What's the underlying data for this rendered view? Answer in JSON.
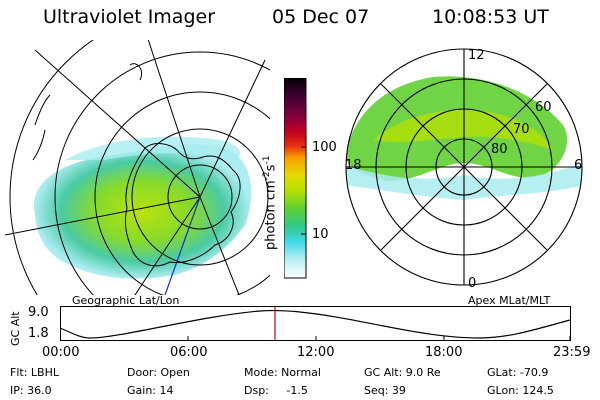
{
  "header": {
    "instrument": "Ultraviolet Imager",
    "date": "05 Dec 07",
    "time": "10:08:53 UT"
  },
  "left_panel": {
    "caption": "Geographic Lat/Lon"
  },
  "right_panel": {
    "caption": "Apex MLat/MLT",
    "mlt_labels": {
      "top": "12",
      "left": "18",
      "right": "6",
      "bottom": "0"
    },
    "mlat_labels": [
      "60",
      "70",
      "80"
    ]
  },
  "colorbar": {
    "unit_label": "photon cm",
    "unit_sup_1": "-2",
    "unit_mid": "s",
    "unit_sup_2": "-1",
    "tick_labels": [
      "100",
      "10"
    ],
    "colors": [
      "#000000",
      "#3a0030",
      "#7a0040",
      "#b00020",
      "#e0201a",
      "#f05010",
      "#f8a000",
      "#e8d800",
      "#b8e000",
      "#80d820",
      "#40c840",
      "#20c8a8",
      "#40d8e8",
      "#a8ecf0",
      "#ffffff"
    ]
  },
  "orbit_plot": {
    "ylabel": "GC Alt",
    "y_ticks": [
      "9.0",
      "1.8"
    ],
    "x_ticks": [
      "00:00",
      "06:00",
      "12:00",
      "18:00",
      "23:59"
    ],
    "marker_color": "#d00000"
  },
  "status": {
    "flt": "Flt: LBHL",
    "ip": "IP: 36.0",
    "door": "Door: Open",
    "gain": "Gain: 14",
    "mode": "Mode: Normal",
    "dsp": "Dsp:     -1.5",
    "gc_alt": "GC Alt: 9.0 Re",
    "seq": "Seq: 39",
    "glat": "GLat: -70.9",
    "glon": "GLon: 124.5"
  }
}
